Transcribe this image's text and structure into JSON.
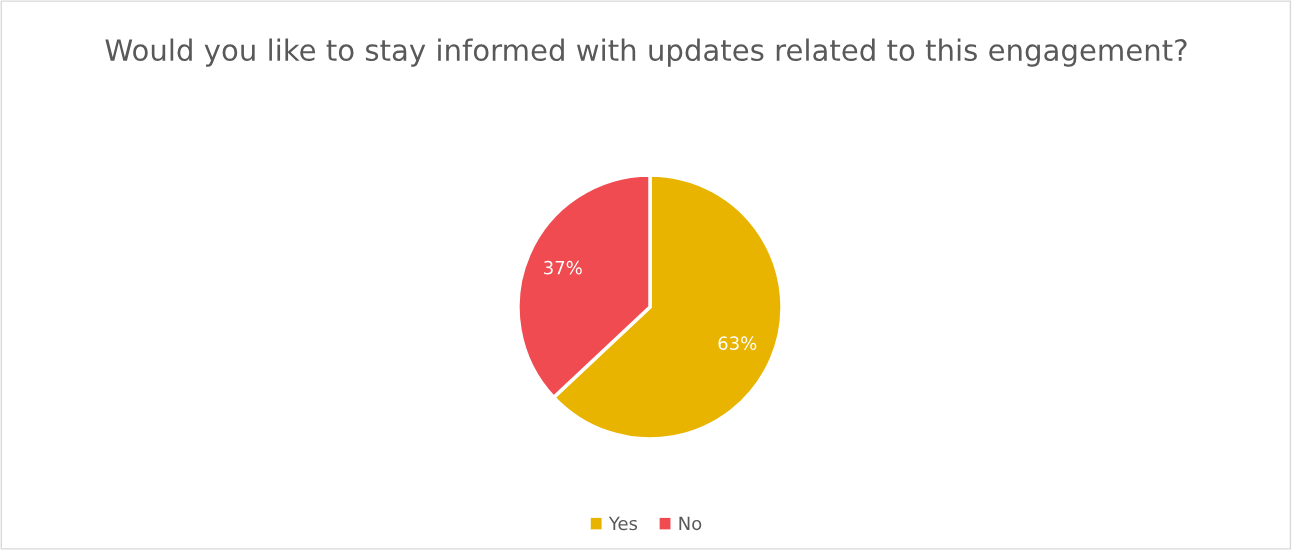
{
  "chart_data": {
    "type": "pie",
    "title": "Would you like to stay informed with updates related to this engagement?",
    "categories": [
      "Yes",
      "No"
    ],
    "values": [
      63,
      37
    ],
    "colors": [
      "#e8b400",
      "#ef4b51"
    ],
    "value_labels": [
      "63%",
      "37%"
    ],
    "legend": "bottom"
  }
}
